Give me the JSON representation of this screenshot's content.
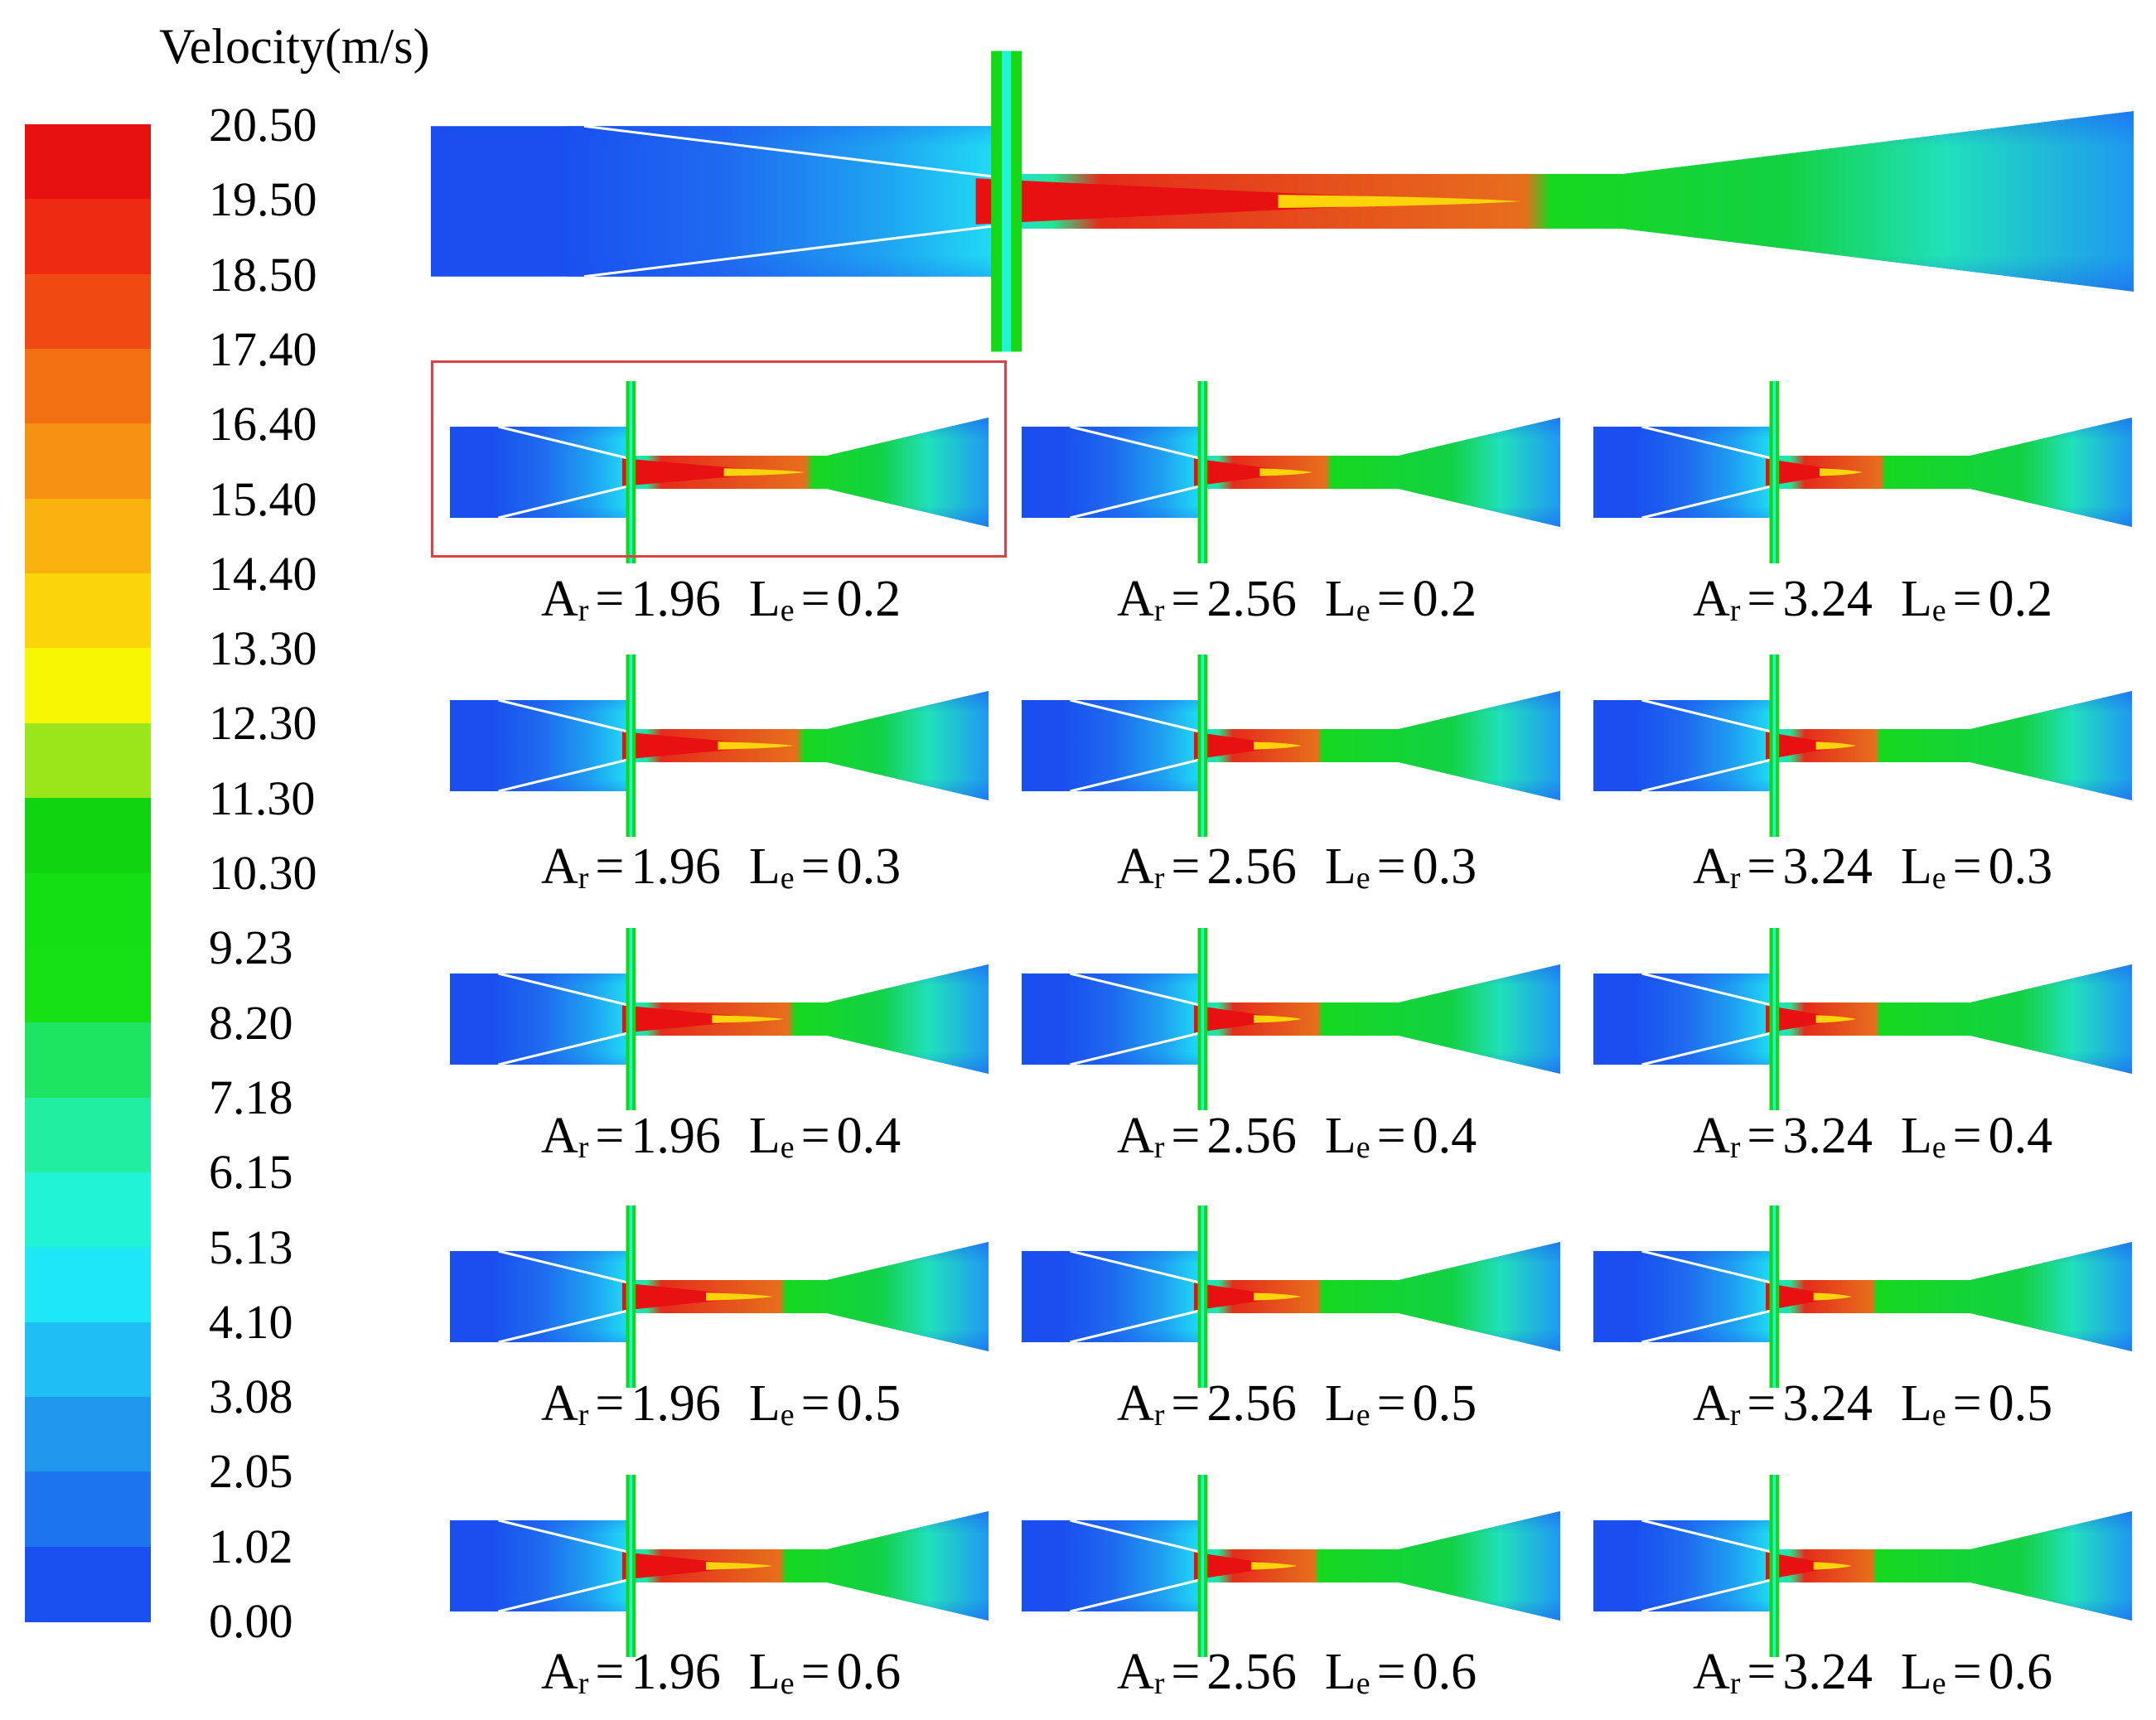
{
  "legend": {
    "title": "Velocity(m/s)",
    "ticks": [
      "20.50",
      "19.50",
      "18.50",
      "17.40",
      "16.40",
      "15.40",
      "14.40",
      "13.30",
      "12.30",
      "11.30",
      "10.30",
      "9.23",
      "8.20",
      "7.18",
      "6.15",
      "5.13",
      "4.10",
      "3.08",
      "2.05",
      "1.02",
      "0.00"
    ],
    "band_colors": [
      "#e81010",
      "#ef2a10",
      "#f04a12",
      "#f27012",
      "#f69012",
      "#f9b10d",
      "#fbd40a",
      "#f7f703",
      "#9be61b",
      "#0fd40f",
      "#12e012",
      "#14e014",
      "#1ee464",
      "#21eea0",
      "#20f4d4",
      "#1ee8f8",
      "#1fbef4",
      "#2096ec",
      "#1e74ee",
      "#1a50f0"
    ]
  },
  "top_case": {
    "throat_velocity_color": "#e01010"
  },
  "cases": [
    {
      "ar": "1.96",
      "le": "0.2",
      "ar_label": "A",
      "ar_sub": "r",
      "le_label": "L",
      "le_sub": "e",
      "jet": 0.85,
      "highlighted": true
    },
    {
      "ar": "2.56",
      "le": "0.2",
      "ar_label": "A",
      "ar_sub": "r",
      "le_label": "L",
      "le_sub": "e",
      "jet": 0.55
    },
    {
      "ar": "3.24",
      "le": "0.2",
      "ar_label": "A",
      "ar_sub": "r",
      "le_label": "L",
      "le_sub": "e",
      "jet": 0.45
    },
    {
      "ar": "1.96",
      "le": "0.3",
      "ar_label": "A",
      "ar_sub": "r",
      "le_label": "L",
      "le_sub": "e",
      "jet": 0.8
    },
    {
      "ar": "2.56",
      "le": "0.3",
      "ar_label": "A",
      "ar_sub": "r",
      "le_label": "L",
      "le_sub": "e",
      "jet": 0.5
    },
    {
      "ar": "3.24",
      "le": "0.3",
      "ar_label": "A",
      "ar_sub": "r",
      "le_label": "L",
      "le_sub": "e",
      "jet": 0.42
    },
    {
      "ar": "1.96",
      "le": "0.4",
      "ar_label": "A",
      "ar_sub": "r",
      "le_label": "L",
      "le_sub": "e",
      "jet": 0.75
    },
    {
      "ar": "2.56",
      "le": "0.4",
      "ar_label": "A",
      "ar_sub": "r",
      "le_label": "L",
      "le_sub": "e",
      "jet": 0.5
    },
    {
      "ar": "3.24",
      "le": "0.4",
      "ar_label": "A",
      "ar_sub": "r",
      "le_label": "L",
      "le_sub": "e",
      "jet": 0.42
    },
    {
      "ar": "1.96",
      "le": "0.5",
      "ar_label": "A",
      "ar_sub": "r",
      "le_label": "L",
      "le_sub": "e",
      "jet": 0.7
    },
    {
      "ar": "2.56",
      "le": "0.5",
      "ar_label": "A",
      "ar_sub": "r",
      "le_label": "L",
      "le_sub": "e",
      "jet": 0.5
    },
    {
      "ar": "3.24",
      "le": "0.5",
      "ar_label": "A",
      "ar_sub": "r",
      "le_label": "L",
      "le_sub": "e",
      "jet": 0.4
    },
    {
      "ar": "1.96",
      "le": "0.6",
      "ar_label": "A",
      "ar_sub": "r",
      "le_label": "L",
      "le_sub": "e",
      "jet": 0.7
    },
    {
      "ar": "2.56",
      "le": "0.6",
      "ar_label": "A",
      "ar_sub": "r",
      "le_label": "L",
      "le_sub": "e",
      "jet": 0.48
    },
    {
      "ar": "3.24",
      "le": "0.6",
      "ar_label": "A",
      "ar_sub": "r",
      "le_label": "L",
      "le_sub": "e",
      "jet": 0.4
    }
  ]
}
